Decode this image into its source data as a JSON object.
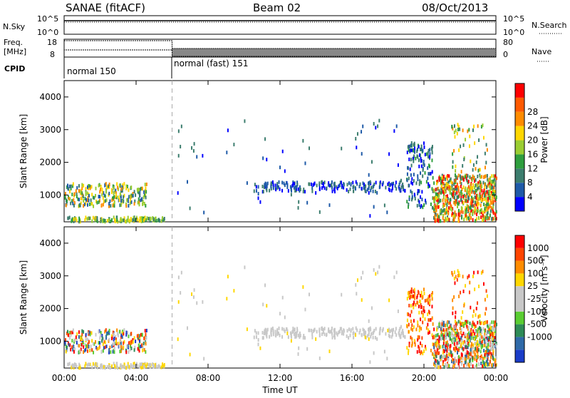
{
  "header": {
    "station": "SANAE (fitACF)",
    "beam": "Beam 02",
    "date": "08/Oct/2013"
  },
  "top_panels": {
    "nsky_label": "N.Sky",
    "nsearch_label": "N.Search",
    "nsky_ticks": [
      "10^5",
      "10^0"
    ],
    "nsearch_ticks": [
      "10^5",
      "10^0"
    ],
    "freq_label_1": "Freq.",
    "freq_label_2": "[MHz]",
    "freq_ticks": [
      "18",
      "8"
    ],
    "nave_label": "Nave",
    "nave_ticks": [
      "80",
      "0"
    ],
    "cpid_label": "CPID",
    "cpid_segments": [
      {
        "label": "normal 150",
        "start_hour": 0,
        "end_hour": 6
      },
      {
        "label": "normal (fast) 151",
        "start_hour": 6,
        "end_hour": 24
      }
    ]
  },
  "colors": {
    "power_scale": [
      "#0000ff",
      "#1e5aa8",
      "#3c7d6e",
      "#2e9e3e",
      "#9acd32",
      "#ffd700",
      "#ff8c00",
      "#ff5a00",
      "#ff0000"
    ],
    "velocity_scale": [
      "#1a3cc8",
      "#2f6aa8",
      "#2e8b57",
      "#5acd32",
      "#c8c8c8",
      "#c8c8c8",
      "#ffd700",
      "#ff8c00",
      "#ff4500",
      "#ff0000"
    ]
  },
  "chart_data": [
    {
      "type": "heatmap",
      "name": "power",
      "xlabel": "",
      "ylabel": "Slant Range [km]",
      "xlim": [
        0,
        24
      ],
      "ylim": [
        180,
        4500
      ],
      "y_ticks": [
        "1000",
        "2000",
        "3000",
        "4000"
      ],
      "colorbar_label": "Power [dB]",
      "colorbar_ticks": [
        "4",
        "8",
        "12",
        "16",
        "20",
        "24",
        "28"
      ],
      "colorbar_range": [
        0,
        30
      ]
    },
    {
      "type": "heatmap",
      "name": "velocity",
      "xlabel": "Time UT",
      "ylabel": "Slant Range [km]",
      "xlim": [
        0,
        24
      ],
      "ylim": [
        180,
        4500
      ],
      "x_ticks": [
        "00:00",
        "04:00",
        "08:00",
        "12:00",
        "16:00",
        "20:00",
        "00:00"
      ],
      "y_ticks": [
        "1000",
        "2000",
        "3000",
        "4000"
      ],
      "colorbar_label": "Velocity [m s⁻¹]",
      "colorbar_ticks": [
        "1000",
        "500",
        "100",
        "25",
        "-25",
        "-100",
        "-500",
        "-1000"
      ]
    }
  ]
}
